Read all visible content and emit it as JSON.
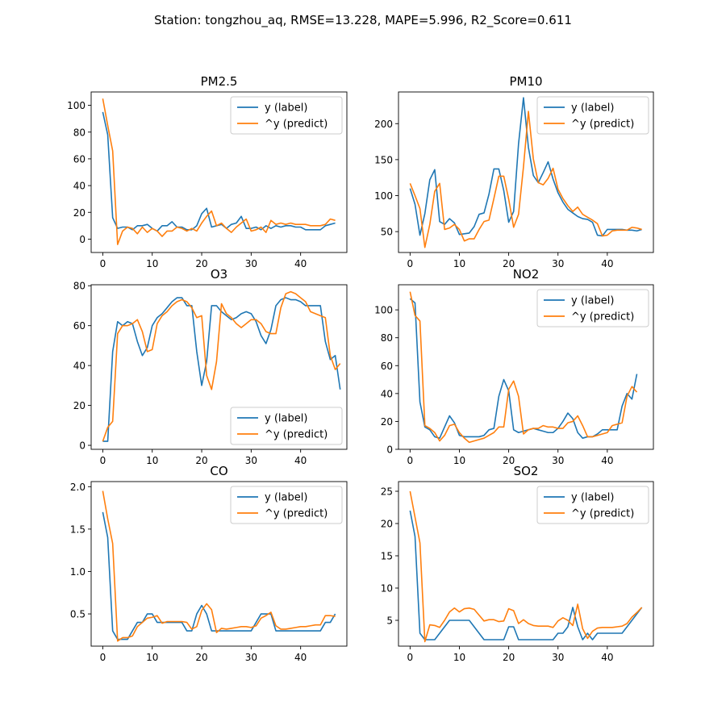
{
  "suptitle": "Station: tongzhou_aq, RMSE=13.228, MAPE=5.996, R2_Score=0.611",
  "colors": {
    "label": "#1f77b4",
    "predict": "#ff7f0e"
  },
  "legend_labels": [
    "y (label)",
    "^y (predict)"
  ],
  "chart_data": [
    {
      "type": "line",
      "title": "PM2.5",
      "xlim": [
        -2.35,
        49.35
      ],
      "ylim": [
        -10,
        110
      ],
      "xticks": [
        0,
        10,
        20,
        30,
        40
      ],
      "yticks": [
        0,
        20,
        40,
        60,
        80,
        100
      ],
      "legend": "upper-right",
      "series": [
        {
          "name": "y (label)",
          "values": [
            95,
            78,
            16,
            8,
            9,
            9,
            7,
            10,
            10,
            11,
            8,
            6,
            10,
            10,
            13,
            9,
            9,
            7,
            7,
            10,
            19,
            23,
            9,
            10,
            11,
            8,
            11,
            12,
            17,
            8,
            8,
            9,
            7,
            10,
            8,
            10,
            9,
            10,
            10,
            9,
            9,
            7,
            7,
            7,
            7,
            10,
            11,
            12
          ]
        },
        {
          "name": "^y (predict)",
          "values": [
            105,
            85,
            66,
            -4,
            6,
            9,
            8,
            4,
            9,
            5,
            8,
            6,
            2,
            6,
            6,
            9,
            8,
            6,
            8,
            6,
            12,
            17,
            21,
            10,
            12,
            8,
            5,
            9,
            12,
            15,
            6,
            7,
            9,
            5,
            14,
            11,
            12,
            11,
            12,
            11,
            11,
            11,
            10,
            10,
            10,
            11,
            15,
            14
          ]
        }
      ]
    },
    {
      "type": "line",
      "title": "PM10",
      "xlim": [
        -2.35,
        49.35
      ],
      "ylim": [
        21,
        244
      ],
      "xticks": [
        0,
        10,
        20,
        30,
        40
      ],
      "yticks": [
        50,
        100,
        150,
        200
      ],
      "legend": "upper-right",
      "series": [
        {
          "name": "y (label)",
          "values": [
            110,
            88,
            45,
            75,
            122,
            136,
            64,
            60,
            68,
            62,
            46,
            47,
            48,
            57,
            74,
            76,
            102,
            137,
            137,
            107,
            63,
            78,
            172,
            236,
            167,
            128,
            118,
            132,
            147,
            123,
            104,
            91,
            81,
            76,
            71,
            68,
            67,
            63,
            45,
            44,
            53,
            53,
            53,
            53,
            52,
            52,
            51,
            53
          ]
        },
        {
          "name": "^y (predict)",
          "values": [
            117,
            100,
            82,
            28,
            60,
            106,
            117,
            53,
            55,
            60,
            53,
            37,
            40,
            40,
            53,
            64,
            66,
            96,
            127,
            127,
            95,
            56,
            74,
            140,
            217,
            151,
            118,
            115,
            124,
            138,
            109,
            96,
            86,
            78,
            84,
            74,
            70,
            66,
            61,
            44,
            45,
            51,
            52,
            52,
            52,
            56,
            55,
            53
          ]
        }
      ]
    },
    {
      "type": "line",
      "title": "O3",
      "xlim": [
        -2.35,
        49.35
      ],
      "ylim": [
        -2,
        80.5
      ],
      "xticks": [
        0,
        10,
        20,
        30,
        40
      ],
      "yticks": [
        0,
        20,
        40,
        60,
        80
      ],
      "legend": "lower-right",
      "series": [
        {
          "name": "y (label)",
          "values": [
            2,
            2,
            47,
            62,
            60,
            62,
            61,
            52,
            45,
            49,
            60,
            64,
            66,
            69,
            72,
            74,
            74,
            70,
            70,
            47,
            30,
            42,
            70,
            70,
            67,
            65,
            63,
            64,
            66,
            67,
            66,
            62,
            55,
            51,
            58,
            70,
            73,
            74,
            73,
            73,
            72,
            70,
            70,
            70,
            70,
            52,
            43,
            45,
            28
          ]
        },
        {
          "name": "^y (predict)",
          "values": [
            2,
            9,
            12,
            56,
            60,
            60,
            61,
            63,
            57,
            47,
            48,
            61,
            65,
            67,
            70,
            72,
            73,
            72,
            69,
            64,
            65,
            35,
            28,
            42,
            71,
            66,
            64,
            61,
            59,
            61,
            63,
            63,
            61,
            57,
            56,
            56,
            69,
            76,
            77,
            76,
            74,
            72,
            67,
            66,
            65,
            64,
            45,
            38,
            41
          ]
        }
      ]
    },
    {
      "type": "line",
      "title": "NO2",
      "xlim": [
        -2.35,
        49.35
      ],
      "ylim": [
        0,
        118
      ],
      "xticks": [
        0,
        10,
        20,
        30,
        40
      ],
      "yticks": [
        0,
        20,
        40,
        60,
        80,
        100
      ],
      "legend": "upper-right",
      "series": [
        {
          "name": "y (label)",
          "values": [
            108,
            105,
            34,
            16,
            14,
            9,
            8,
            16,
            24,
            19,
            10,
            9,
            9,
            9,
            9,
            10,
            14,
            15,
            38,
            50,
            42,
            14,
            12,
            13,
            14,
            15,
            14,
            13,
            12,
            12,
            15,
            20,
            26,
            22,
            12,
            8,
            9,
            9,
            11,
            14,
            14,
            14,
            14,
            31,
            40,
            36,
            54
          ]
        },
        {
          "name": "^y (predict)",
          "values": [
            113,
            96,
            92,
            17,
            15,
            12,
            6,
            10,
            17,
            18,
            12,
            8,
            5,
            6,
            7,
            8,
            10,
            12,
            16,
            16,
            43,
            49,
            38,
            11,
            14,
            15,
            15,
            17,
            16,
            16,
            15,
            15,
            19,
            20,
            24,
            17,
            9,
            9,
            10,
            11,
            12,
            17,
            18,
            19,
            38,
            45,
            41
          ]
        }
      ]
    },
    {
      "type": "line",
      "title": "CO",
      "xlim": [
        -2.35,
        49.35
      ],
      "ylim": [
        0.12,
        2.06
      ],
      "xticks": [
        0,
        10,
        20,
        30,
        40
      ],
      "yticks": [
        0.5,
        1.0,
        1.5,
        2.0
      ],
      "yticklabels": [
        "0.5",
        "1.0",
        "1.5",
        "2.0"
      ],
      "legend": "upper-right",
      "series": [
        {
          "name": "y (label)",
          "values": [
            1.7,
            1.4,
            0.3,
            0.2,
            0.2,
            0.2,
            0.3,
            0.4,
            0.4,
            0.5,
            0.5,
            0.4,
            0.4,
            0.4,
            0.4,
            0.4,
            0.4,
            0.3,
            0.3,
            0.5,
            0.6,
            0.5,
            0.3,
            0.3,
            0.3,
            0.3,
            0.3,
            0.3,
            0.3,
            0.3,
            0.3,
            0.4,
            0.5,
            0.5,
            0.5,
            0.3,
            0.3,
            0.3,
            0.3,
            0.3,
            0.3,
            0.3,
            0.3,
            0.3,
            0.3,
            0.4,
            0.4,
            0.5
          ]
        },
        {
          "name": "^y (predict)",
          "values": [
            1.95,
            1.62,
            1.33,
            0.18,
            0.22,
            0.22,
            0.24,
            0.35,
            0.4,
            0.45,
            0.46,
            0.48,
            0.39,
            0.41,
            0.41,
            0.41,
            0.41,
            0.4,
            0.32,
            0.35,
            0.54,
            0.62,
            0.55,
            0.28,
            0.33,
            0.32,
            0.33,
            0.34,
            0.35,
            0.35,
            0.34,
            0.36,
            0.45,
            0.48,
            0.52,
            0.36,
            0.32,
            0.32,
            0.33,
            0.34,
            0.35,
            0.35,
            0.36,
            0.37,
            0.37,
            0.48,
            0.48,
            0.47
          ]
        }
      ]
    },
    {
      "type": "line",
      "title": "SO2",
      "xlim": [
        -2.35,
        49.35
      ],
      "ylim": [
        1.0,
        26.5
      ],
      "xticks": [
        0,
        10,
        20,
        30,
        40
      ],
      "yticks": [
        5,
        10,
        15,
        20,
        25
      ],
      "legend": "upper-right",
      "series": [
        {
          "name": "y (label)",
          "values": [
            22,
            18,
            3,
            2,
            2,
            2,
            3,
            4,
            5,
            5,
            5,
            5,
            5,
            4,
            3,
            2,
            2,
            2,
            2,
            2,
            4,
            4,
            2,
            2,
            2,
            2,
            2,
            2,
            2,
            2,
            3,
            3,
            4,
            7,
            4,
            2,
            3,
            2,
            3,
            3,
            3,
            3,
            3,
            3,
            4,
            5,
            6,
            7
          ]
        },
        {
          "name": "^y (predict)",
          "values": [
            25,
            21,
            17,
            1.7,
            4.3,
            4.2,
            3.9,
            5,
            6.3,
            6.9,
            6.3,
            6.8,
            6.9,
            6.7,
            5.8,
            4.9,
            5.1,
            5.1,
            4.8,
            4.9,
            6.8,
            6.5,
            4.5,
            5.1,
            4.5,
            4.2,
            4.1,
            4.1,
            4.1,
            3.9,
            4.9,
            5.4,
            5,
            4.2,
            7.5,
            3.7,
            2.2,
            3.3,
            3.8,
            3.9,
            3.9,
            3.9,
            4,
            4.1,
            4.5,
            5.5,
            6.2,
            7
          ]
        }
      ]
    }
  ]
}
